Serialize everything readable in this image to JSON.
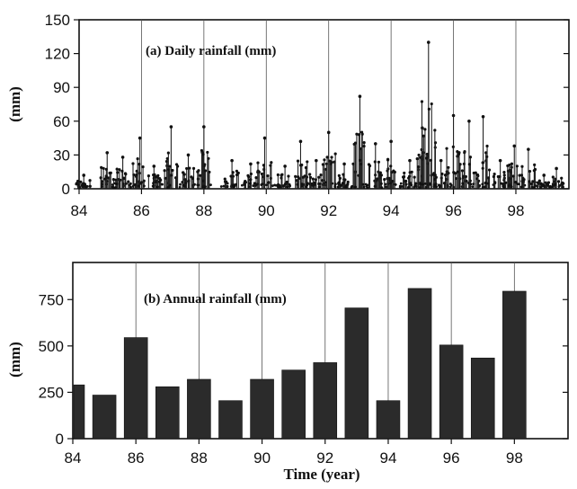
{
  "chart_data": [
    {
      "type": "bar",
      "title": "(a) Daily rainfall (mm)",
      "xlabel": "",
      "ylabel": "(mm)",
      "xlim": [
        84,
        99.7
      ],
      "ylim": [
        0,
        150
      ],
      "x_ticks": [
        84,
        86,
        88,
        90,
        92,
        94,
        96,
        98
      ],
      "y_ticks": [
        0,
        30,
        60,
        90,
        120,
        150
      ],
      "x_tick_labels": [
        "84",
        "86",
        "88",
        "90",
        "92",
        "94",
        "96",
        "98"
      ],
      "y_tick_labels": [
        "0",
        "30",
        "60",
        "90",
        "120",
        "150"
      ],
      "grid": "vertical at each year",
      "seasons": [
        {
          "year": 84.15,
          "max": 12
        },
        {
          "year": 84.9,
          "max": 32
        },
        {
          "year": 85.4,
          "max": 28
        },
        {
          "year": 85.95,
          "max": 45
        },
        {
          "year": 86.4,
          "max": 20
        },
        {
          "year": 86.95,
          "max": 55
        },
        {
          "year": 87.5,
          "max": 30
        },
        {
          "year": 88.0,
          "max": 55
        },
        {
          "year": 88.9,
          "max": 25
        },
        {
          "year": 89.5,
          "max": 22
        },
        {
          "year": 89.95,
          "max": 45
        },
        {
          "year": 90.6,
          "max": 20
        },
        {
          "year": 91.1,
          "max": 42
        },
        {
          "year": 91.6,
          "max": 25
        },
        {
          "year": 92.0,
          "max": 50
        },
        {
          "year": 92.5,
          "max": 22
        },
        {
          "year": 93.0,
          "max": 82
        },
        {
          "year": 93.5,
          "max": 40
        },
        {
          "year": 94.0,
          "max": 42
        },
        {
          "year": 94.6,
          "max": 25
        },
        {
          "year": 95.0,
          "max": 54
        },
        {
          "year": 95.2,
          "max": 130
        },
        {
          "year": 95.6,
          "max": 25
        },
        {
          "year": 96.0,
          "max": 65
        },
        {
          "year": 96.5,
          "max": 60
        },
        {
          "year": 96.95,
          "max": 64
        },
        {
          "year": 97.5,
          "max": 25
        },
        {
          "year": 97.95,
          "max": 38
        },
        {
          "year": 98.4,
          "max": 35
        },
        {
          "year": 98.9,
          "max": 12
        },
        {
          "year": 99.3,
          "max": 18
        }
      ]
    },
    {
      "type": "bar",
      "title": "(b) Annual rainfall (mm)",
      "xlabel": "Time (year)",
      "ylabel": "(mm)",
      "xlim": [
        84,
        99.7
      ],
      "ylim": [
        0,
        950
      ],
      "x_ticks": [
        84,
        86,
        88,
        90,
        92,
        94,
        96,
        98
      ],
      "y_ticks": [
        0,
        250,
        500,
        750
      ],
      "x_tick_labels": [
        "84",
        "86",
        "88",
        "90",
        "92",
        "94",
        "96",
        "98"
      ],
      "y_tick_labels": [
        "0",
        "250",
        "500",
        "750"
      ],
      "grid": "vertical at each year",
      "categories": [
        84,
        85,
        86,
        87,
        88,
        89,
        90,
        91,
        92,
        93,
        94,
        95,
        96,
        97,
        98
      ],
      "values": [
        290,
        235,
        545,
        280,
        320,
        205,
        320,
        370,
        410,
        705,
        205,
        810,
        505,
        435,
        795
      ]
    }
  ]
}
